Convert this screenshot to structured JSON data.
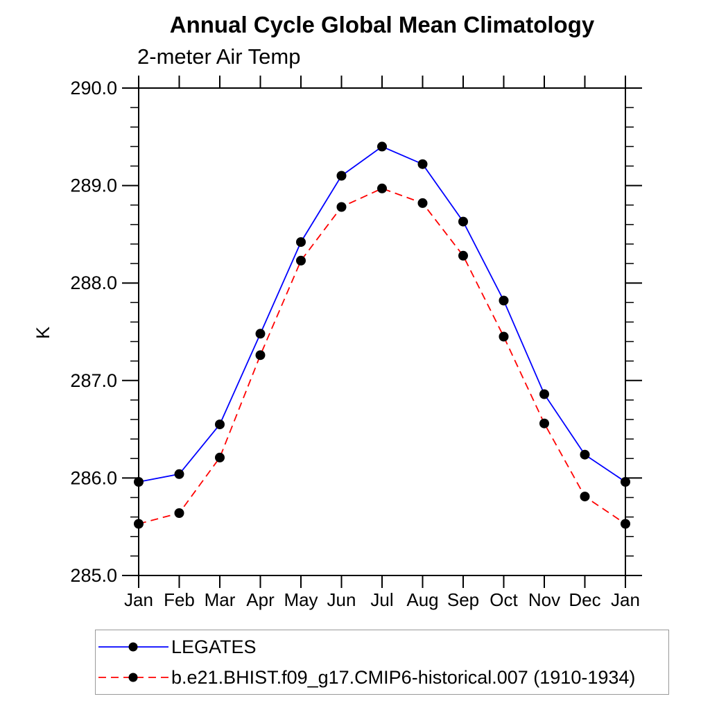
{
  "chart_data": {
    "type": "line",
    "title": "Annual Cycle Global Mean Climatology",
    "subtitle": "2-meter Air Temp",
    "ylabel": "K",
    "xlabel": "",
    "categories": [
      "Jan",
      "Feb",
      "Mar",
      "Apr",
      "May",
      "Jun",
      "Jul",
      "Aug",
      "Sep",
      "Oct",
      "Nov",
      "Dec",
      "Jan"
    ],
    "ylim": [
      285.0,
      290.0
    ],
    "y_ticks": [
      285.0,
      286.0,
      287.0,
      288.0,
      289.0,
      290.0
    ],
    "y_tick_labels": [
      "285.0",
      "286.0",
      "287.0",
      "288.0",
      "289.0",
      "290.0"
    ],
    "y_minor_step": 0.2,
    "grid": false,
    "legend_position": "bottom-left",
    "colors": {
      "axis": "#000000",
      "marker": "#000000",
      "legend_border": "#999999",
      "background": "#ffffff"
    },
    "series": [
      {
        "name": "LEGATES",
        "color": "#0000ff",
        "line_style": "solid",
        "marker": "filled-circle",
        "values": [
          285.96,
          286.04,
          286.55,
          287.48,
          288.42,
          289.1,
          289.4,
          289.22,
          288.63,
          287.82,
          286.86,
          286.24,
          285.96
        ]
      },
      {
        "name": "b.e21.BHIST.f09_g17.CMIP6-historical.007 (1910-1934)",
        "color": "#ff0000",
        "line_style": "dashed",
        "marker": "filled-circle",
        "values": [
          285.53,
          285.64,
          286.21,
          287.26,
          288.23,
          288.78,
          288.97,
          288.82,
          288.28,
          287.45,
          286.56,
          285.81,
          285.53
        ]
      }
    ]
  }
}
